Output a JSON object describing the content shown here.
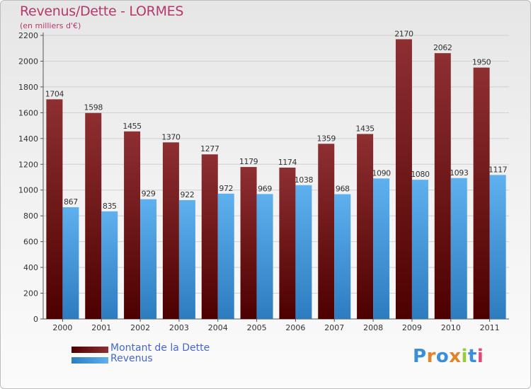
{
  "header": {
    "title": "Revenus/Dette - LORMES",
    "subtitle": "(en milliers d'€)"
  },
  "colors": {
    "dette": "#7a1f24",
    "revenus": "#4a9fe0",
    "title": "#b5386a",
    "legend_text": "#4466d4"
  },
  "chart_data": {
    "type": "bar",
    "title": "Revenus/Dette - LORMES",
    "subtitle": "(en milliers d'€)",
    "categories": [
      "2000",
      "2001",
      "2002",
      "2003",
      "2004",
      "2005",
      "2006",
      "2007",
      "2008",
      "2009",
      "2010",
      "2011"
    ],
    "series": [
      {
        "name": "Montant de la Dette",
        "values": [
          1704,
          1598,
          1455,
          1370,
          1277,
          1179,
          1174,
          1359,
          1435,
          2170,
          2062,
          1950
        ]
      },
      {
        "name": "Revenus",
        "values": [
          867,
          835,
          929,
          922,
          972,
          969,
          1038,
          968,
          1090,
          1080,
          1093,
          1117
        ]
      }
    ],
    "ylim": [
      0,
      2200
    ],
    "yticks": [
      0,
      200,
      400,
      600,
      800,
      1000,
      1200,
      1400,
      1600,
      1800,
      2000,
      2200
    ],
    "grid": true,
    "legend_position": "bottom-left"
  },
  "legend": {
    "items": [
      {
        "label": "Montant de la Dette"
      },
      {
        "label": "Revenus"
      }
    ]
  },
  "logo": {
    "letters": [
      "P",
      "r",
      "o",
      "x",
      "i",
      "t",
      "i"
    ],
    "colors": [
      "#3a8fd8",
      "#e0852a",
      "#3a8fd8",
      "#e0852a",
      "#9acb3c",
      "#3a8fd8",
      "#e04a7a"
    ]
  }
}
